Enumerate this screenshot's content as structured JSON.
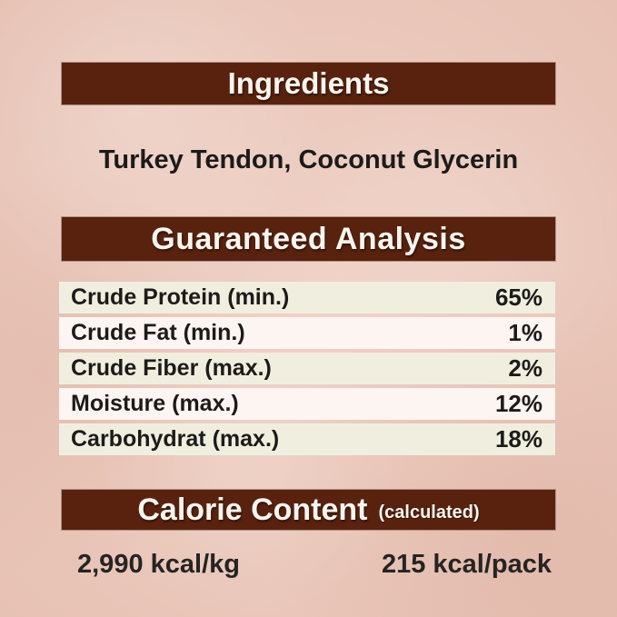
{
  "colors": {
    "background": "#eeccbf",
    "header_bar": "#58220f",
    "header_text": "#f8f5ef",
    "row_alt_green": "#f0efdf",
    "row_alt_pink": "#fdf5f1",
    "body_text": "#1d1b1a"
  },
  "ingredients": {
    "title": "Ingredients",
    "list": "Turkey Tendon, Coconut Glycerin"
  },
  "guaranteed_analysis": {
    "title": "Guaranteed Analysis",
    "rows": [
      {
        "name": "Crude Protein (min.)",
        "value": "65%"
      },
      {
        "name": "Crude Fat (min.)",
        "value": "1%"
      },
      {
        "name": "Crude Fiber (max.)",
        "value": "2%"
      },
      {
        "name": "Moisture (max.)",
        "value": "12%"
      },
      {
        "name": "Carbohydrat (max.)",
        "value": "18%"
      }
    ]
  },
  "calorie_content": {
    "title": "Calorie Content",
    "qualifier": "(calculated)",
    "per_kg": "2,990 kcal/kg",
    "per_pack": "215 kcal/pack"
  }
}
